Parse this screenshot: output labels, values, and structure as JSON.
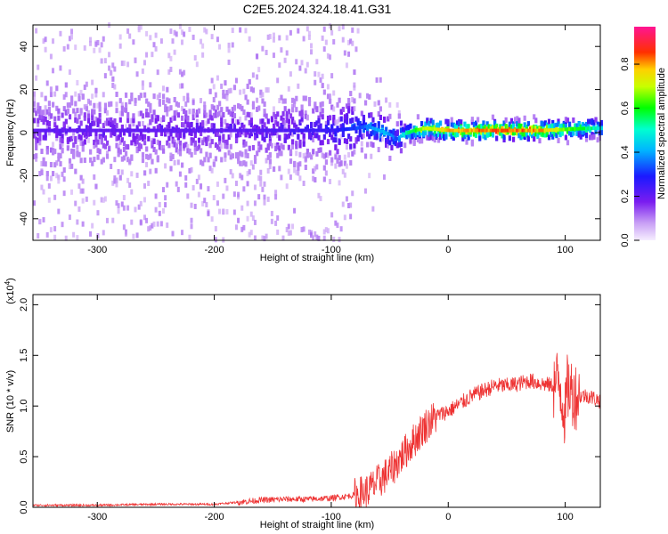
{
  "title": "C2E5.2024.324.18.41.G31",
  "chart_data": [
    {
      "type": "heatmap",
      "xlabel": "Height of straight line (km)",
      "ylabel": "Frequency (Hz)",
      "xlim": [
        -355,
        130
      ],
      "ylim": [
        -50,
        50
      ],
      "xticks": [
        -300,
        -200,
        -100,
        0,
        100
      ],
      "yticks": [
        -40,
        -20,
        0,
        20,
        40
      ],
      "grid": false,
      "colorbar": {
        "label": "Normalized spectral amplitude",
        "range": [
          0,
          0.97
        ],
        "ticks": [
          0.0,
          0.2,
          0.4,
          0.6,
          0.8
        ],
        "colormap": "rainbow (white-violet → blue → cyan → green → yellow → red → magenta)"
      },
      "ridge": {
        "x": [
          -355,
          -300,
          -250,
          -200,
          -150,
          -100,
          -80,
          -70,
          -60,
          -50,
          -45,
          -40,
          -30,
          -20,
          -10,
          0,
          20,
          40,
          60,
          80,
          100,
          120,
          130
        ],
        "freq": [
          1,
          1,
          1,
          1,
          1,
          1,
          2,
          3,
          1,
          -1,
          -3,
          -1,
          1,
          2,
          1.5,
          1,
          1,
          1,
          1,
          1,
          1.5,
          2,
          2
        ],
        "amplitude": [
          0.22,
          0.22,
          0.22,
          0.22,
          0.24,
          0.28,
          0.35,
          0.4,
          0.45,
          0.42,
          0.35,
          0.5,
          0.65,
          0.75,
          0.8,
          0.85,
          0.88,
          0.9,
          0.9,
          0.85,
          0.7,
          0.6,
          0.5
        ]
      },
      "noise_spread_hz": {
        "x": [
          -355,
          -80,
          -40,
          130
        ],
        "spread": [
          50,
          50,
          12,
          4
        ]
      }
    },
    {
      "type": "line",
      "xlabel": "Height of straight line (km)",
      "ylabel": "SNR (10 * v/v)",
      "multiplier_label": "(x10",
      "multiplier_exp": "4",
      "xlim": [
        -355,
        130
      ],
      "ylim": [
        0,
        2.1
      ],
      "xticks": [
        -300,
        -200,
        -100,
        0,
        100
      ],
      "yticks": [
        0.0,
        0.5,
        1.0,
        1.5,
        2.0
      ],
      "ytick_labels": [
        "0.0",
        "0.5",
        "1.0",
        "1.5",
        "2.0"
      ],
      "color": "#ee3333",
      "series": [
        {
          "x": [
            -355,
            -300,
            -250,
            -200,
            -180,
            -160,
            -140,
            -120,
            -100,
            -80,
            -70,
            -60,
            -50,
            -40,
            -30,
            -20,
            -10,
            0,
            10,
            20,
            30,
            40,
            50,
            60,
            70,
            80,
            90,
            95,
            100,
            102,
            105,
            110,
            120,
            130
          ],
          "values": [
            0.02,
            0.02,
            0.03,
            0.03,
            0.05,
            0.07,
            0.08,
            0.08,
            0.09,
            0.12,
            0.15,
            0.25,
            0.35,
            0.5,
            0.65,
            0.8,
            0.9,
            0.95,
            1.02,
            1.1,
            1.15,
            1.2,
            1.2,
            1.22,
            1.25,
            1.22,
            1.2,
            1.25,
            0.9,
            1.2,
            1.15,
            1.1,
            1.1,
            1.05
          ]
        }
      ]
    }
  ]
}
